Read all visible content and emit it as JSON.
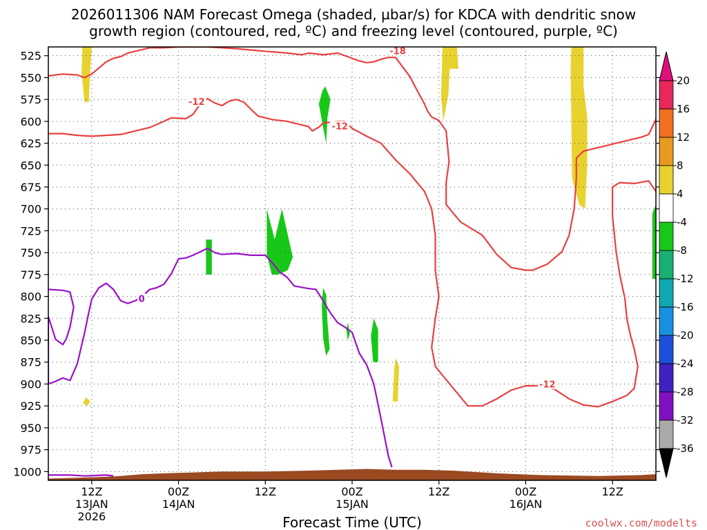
{
  "chart_data": {
    "type": "time-height",
    "title_lines": [
      "2026011306 NAM Forecast Omega (shaded, µbar/s) for KDCA with dendritic snow",
      "growth region (contoured, red, ºC) and freezing level (contoured, purple, ºC)"
    ],
    "xlabel": "Forecast Time (UTC)",
    "watermark": "coolwx.com/modelts",
    "x_range_hours": [
      0,
      84
    ],
    "y_range_hpa": [
      1010,
      515
    ],
    "grid": true,
    "y_ticks": [
      525,
      550,
      575,
      600,
      625,
      650,
      675,
      700,
      725,
      750,
      775,
      800,
      825,
      850,
      875,
      900,
      925,
      950,
      975,
      1000
    ],
    "x_ticks": [
      {
        "hour": 6,
        "lines": [
          "12Z",
          "13JAN",
          "2026"
        ]
      },
      {
        "hour": 18,
        "lines": [
          "00Z",
          "14JAN"
        ]
      },
      {
        "hour": 30,
        "lines": [
          "12Z"
        ]
      },
      {
        "hour": 42,
        "lines": [
          "00Z",
          "15JAN"
        ]
      },
      {
        "hour": 54,
        "lines": [
          "12Z"
        ]
      },
      {
        "hour": 66,
        "lines": [
          "00Z",
          "16JAN"
        ]
      },
      {
        "hour": 78,
        "lines": [
          "12Z"
        ]
      }
    ],
    "colorbar": {
      "labels": [
        "20",
        "16",
        "12",
        "8",
        "4",
        "-4",
        "-8",
        "-12",
        "-16",
        "-20",
        "-24",
        "-28",
        "-32",
        "-36"
      ],
      "colors": [
        "#e8285a",
        "#f07020",
        "#e89a20",
        "#e8d230",
        "#ffffff",
        "#18c818",
        "#18b070",
        "#10a8b0",
        "#1890e0",
        "#1c50d8",
        "#4020c0",
        "#8010c0",
        "#aaaaaa"
      ],
      "top_cap_color": "#e0107a",
      "bottom_cap_color": "#000000"
    },
    "terrain_color": "#9c4a22",
    "series": [
      {
        "kind": "contour",
        "color": "#e84040",
        "label": "-18",
        "points": [
          [
            0,
            548
          ],
          [
            2,
            546
          ],
          [
            4,
            547
          ],
          [
            5,
            550
          ],
          [
            6,
            546
          ],
          [
            7,
            539
          ],
          [
            8,
            532
          ],
          [
            9,
            528
          ],
          [
            10,
            526
          ],
          [
            11,
            522
          ],
          [
            12,
            520
          ],
          [
            14,
            516
          ],
          [
            16,
            516
          ],
          [
            18,
            515
          ],
          [
            22,
            515
          ],
          [
            26,
            517
          ],
          [
            30,
            520
          ],
          [
            33,
            522
          ],
          [
            35,
            524
          ],
          [
            36,
            522
          ],
          [
            38,
            524
          ],
          [
            40,
            522
          ],
          [
            42,
            528
          ],
          [
            43,
            531
          ],
          [
            44,
            533
          ],
          [
            45,
            532
          ],
          [
            46,
            529
          ],
          [
            47,
            527
          ],
          [
            48,
            527
          ],
          [
            49,
            538
          ],
          [
            50,
            549
          ],
          [
            51,
            565
          ],
          [
            52,
            580
          ],
          [
            52.4,
            588
          ],
          [
            53,
            595
          ],
          [
            54,
            599
          ],
          [
            55,
            611
          ],
          [
            55.4,
            646
          ],
          [
            55,
            670
          ],
          [
            55,
            695
          ],
          [
            57,
            715
          ],
          [
            60,
            730
          ],
          [
            62,
            752
          ],
          [
            64,
            767
          ],
          [
            66,
            770
          ],
          [
            67,
            770
          ],
          [
            69,
            763
          ],
          [
            71,
            749
          ],
          [
            72,
            730
          ],
          [
            72.7,
            700
          ],
          [
            73,
            665
          ],
          [
            73,
            642
          ],
          [
            74,
            634
          ],
          [
            76,
            630
          ],
          [
            78,
            626
          ],
          [
            80,
            622
          ],
          [
            82,
            618
          ],
          [
            83,
            615
          ],
          [
            84,
            598
          ],
          [
            84,
            596
          ]
        ]
      },
      {
        "kind": "contour",
        "color": "#e84040",
        "label": "-12",
        "points": [
          [
            0,
            614
          ],
          [
            2,
            614
          ],
          [
            4,
            616
          ],
          [
            6,
            617
          ],
          [
            8,
            616
          ],
          [
            10,
            615
          ],
          [
            12,
            611
          ],
          [
            14,
            607
          ],
          [
            16,
            600
          ],
          [
            17,
            596
          ],
          [
            19,
            597
          ],
          [
            20,
            592
          ],
          [
            21,
            580
          ],
          [
            22,
            574
          ],
          [
            23,
            579
          ],
          [
            24,
            582
          ],
          [
            25,
            577
          ],
          [
            26,
            575
          ],
          [
            27,
            578
          ],
          [
            28,
            586
          ],
          [
            29,
            594
          ],
          [
            31,
            598
          ],
          [
            33,
            600
          ],
          [
            35,
            604
          ],
          [
            36,
            606
          ],
          [
            36.5,
            611
          ],
          [
            37.5,
            606
          ],
          [
            38,
            602
          ],
          [
            40,
            600
          ],
          [
            41,
            600
          ],
          [
            42,
            608
          ],
          [
            44,
            617
          ],
          [
            46,
            625
          ],
          [
            48,
            644
          ],
          [
            50,
            660
          ],
          [
            52,
            680
          ],
          [
            53,
            700
          ],
          [
            53.5,
            730
          ],
          [
            53.5,
            770
          ],
          [
            54,
            800
          ],
          [
            53.5,
            825
          ],
          [
            53,
            858
          ],
          [
            53.5,
            880
          ],
          [
            56,
            905
          ],
          [
            58,
            925
          ],
          [
            60,
            925
          ],
          [
            62,
            917
          ],
          [
            64,
            907
          ],
          [
            66,
            902
          ],
          [
            68,
            902
          ],
          [
            70,
            906
          ],
          [
            72,
            917
          ],
          [
            74,
            924
          ],
          [
            76,
            926
          ],
          [
            78,
            920
          ],
          [
            80,
            913
          ],
          [
            81,
            905
          ],
          [
            81.5,
            880
          ],
          [
            81,
            860
          ],
          [
            80.5,
            845
          ],
          [
            80,
            826
          ],
          [
            79.7,
            802
          ],
          [
            79,
            775
          ],
          [
            78.5,
            749
          ],
          [
            78,
            708
          ],
          [
            78,
            675
          ],
          [
            79,
            670
          ],
          [
            81,
            671
          ],
          [
            83,
            668
          ],
          [
            84,
            680
          ]
        ]
      },
      {
        "kind": "contour",
        "color": "#9a10c8",
        "label": "0",
        "points": [
          [
            0,
            792
          ],
          [
            2,
            793
          ],
          [
            3,
            795
          ],
          [
            3.5,
            812
          ],
          [
            3,
            835
          ],
          [
            2.5,
            848
          ],
          [
            2,
            855
          ],
          [
            1,
            849
          ],
          [
            0,
            823
          ],
          [
            0,
            900
          ],
          [
            1,
            897
          ],
          [
            2,
            893
          ],
          [
            3,
            896
          ],
          [
            4,
            877
          ],
          [
            5,
            842
          ],
          [
            5.5,
            822
          ],
          [
            6,
            803
          ],
          [
            7,
            790
          ],
          [
            8,
            785
          ],
          [
            9,
            792
          ],
          [
            10,
            805
          ],
          [
            11,
            808
          ],
          [
            12,
            805
          ],
          [
            13,
            800
          ],
          [
            14,
            792
          ],
          [
            15,
            790
          ],
          [
            16,
            786
          ],
          [
            17,
            774
          ],
          [
            18,
            757
          ],
          [
            19,
            756
          ],
          [
            20,
            753
          ],
          [
            21,
            749
          ],
          [
            22,
            745
          ],
          [
            23,
            750
          ],
          [
            24,
            752
          ],
          [
            26,
            751
          ],
          [
            28,
            753
          ],
          [
            30,
            753
          ],
          [
            31,
            762
          ],
          [
            32,
            772
          ],
          [
            33,
            778
          ],
          [
            34,
            788
          ],
          [
            36,
            791
          ],
          [
            37,
            792
          ],
          [
            38,
            805
          ],
          [
            39,
            819
          ],
          [
            40,
            830
          ],
          [
            41,
            835
          ],
          [
            42,
            841
          ],
          [
            43,
            865
          ],
          [
            44,
            878
          ],
          [
            45,
            900
          ],
          [
            46,
            940
          ],
          [
            47,
            982
          ],
          [
            47.5,
            995
          ]
        ]
      },
      {
        "kind": "contour",
        "color": "#9a10c8",
        "label": "",
        "points": [
          [
            0,
            1004
          ],
          [
            3,
            1004
          ],
          [
            5,
            1005
          ],
          [
            8,
            1004
          ],
          [
            9,
            1005
          ]
        ]
      }
    ],
    "shaded_regions": [
      {
        "color": "#e8d230",
        "points": [
          [
            4.7,
            515
          ],
          [
            6,
            515
          ],
          [
            5.8,
            540
          ],
          [
            5.6,
            578
          ],
          [
            5,
            578
          ],
          [
            4.6,
            545
          ]
        ]
      },
      {
        "color": "#e8d230",
        "points": [
          [
            5.2,
            915
          ],
          [
            5.8,
            920
          ],
          [
            5.4,
            925
          ],
          [
            4.8,
            922
          ]
        ]
      },
      {
        "color": "#e8d230",
        "points": [
          [
            54.5,
            515
          ],
          [
            56.5,
            515
          ],
          [
            56.7,
            540
          ],
          [
            55.5,
            540
          ],
          [
            55.3,
            570
          ],
          [
            54.6,
            600
          ],
          [
            54.3,
            570
          ]
        ]
      },
      {
        "color": "#e8d230",
        "points": [
          [
            72.3,
            515
          ],
          [
            74,
            515
          ],
          [
            74,
            560
          ],
          [
            74.5,
            595
          ],
          [
            74.5,
            650
          ],
          [
            74.2,
            700
          ],
          [
            73.4,
            695
          ],
          [
            72.4,
            665
          ],
          [
            72.3,
            590
          ],
          [
            72.2,
            540
          ]
        ]
      },
      {
        "color": "#e8d230",
        "points": [
          [
            48,
            870
          ],
          [
            48.5,
            880
          ],
          [
            48.3,
            920
          ],
          [
            47.6,
            920
          ],
          [
            47.8,
            885
          ]
        ]
      },
      {
        "color": "#18c818",
        "points": [
          [
            38.3,
            560
          ],
          [
            39,
            575
          ],
          [
            38.6,
            595
          ],
          [
            38.4,
            625
          ],
          [
            37.8,
            598
          ],
          [
            37.4,
            580
          ],
          [
            37.9,
            565
          ]
        ]
      },
      {
        "color": "#18c818",
        "points": [
          [
            21.8,
            735
          ],
          [
            22.6,
            735
          ],
          [
            22.6,
            775
          ],
          [
            21.8,
            775
          ]
        ]
      },
      {
        "color": "#18c818",
        "points": [
          [
            30.2,
            700
          ],
          [
            31.3,
            735
          ],
          [
            32.3,
            700
          ],
          [
            33.8,
            755
          ],
          [
            33.1,
            770
          ],
          [
            31.8,
            775
          ],
          [
            30.9,
            775
          ],
          [
            30.2,
            752
          ]
        ]
      },
      {
        "color": "#18c818",
        "points": [
          [
            38,
            790
          ],
          [
            38.4,
            798
          ],
          [
            38.6,
            830
          ],
          [
            38.9,
            860
          ],
          [
            38.4,
            868
          ],
          [
            38,
            848
          ],
          [
            37.8,
            810
          ]
        ]
      },
      {
        "color": "#18c818",
        "points": [
          [
            41.4,
            830
          ],
          [
            41.7,
            842
          ],
          [
            41.4,
            850
          ],
          [
            41.2,
            838
          ]
        ]
      },
      {
        "color": "#18c818",
        "points": [
          [
            45,
            825
          ],
          [
            45.6,
            838
          ],
          [
            45.6,
            875
          ],
          [
            44.9,
            875
          ],
          [
            44.6,
            845
          ]
        ]
      },
      {
        "color": "#18c818",
        "points": [
          [
            83.5,
            705
          ],
          [
            84,
            695
          ],
          [
            84,
            780
          ],
          [
            83.5,
            780
          ]
        ]
      }
    ],
    "terrain_profile": [
      [
        0,
        1008
      ],
      [
        8,
        1006
      ],
      [
        10,
        1005
      ],
      [
        13,
        1003
      ],
      [
        16,
        1002
      ],
      [
        20,
        1001
      ],
      [
        24,
        1000
      ],
      [
        30,
        1000
      ],
      [
        36,
        999
      ],
      [
        40,
        998
      ],
      [
        44,
        997
      ],
      [
        48,
        998
      ],
      [
        52,
        998
      ],
      [
        56,
        999
      ],
      [
        62,
        1002
      ],
      [
        68,
        1004
      ],
      [
        76,
        1005
      ],
      [
        82,
        1004
      ],
      [
        84,
        1003
      ]
    ],
    "contour_labels": [
      {
        "text": "-18",
        "at": [
          48.3,
          520
        ],
        "color": "#e84040"
      },
      {
        "text": "-12",
        "at": [
          20.5,
          578
        ],
        "color": "#e84040"
      },
      {
        "text": "-12",
        "at": [
          40.3,
          606
        ],
        "color": "#e84040"
      },
      {
        "text": "-12",
        "at": [
          69,
          901
        ],
        "color": "#e84040"
      },
      {
        "text": "0",
        "at": [
          12.9,
          803
        ],
        "color": "#9a10c8"
      }
    ]
  }
}
